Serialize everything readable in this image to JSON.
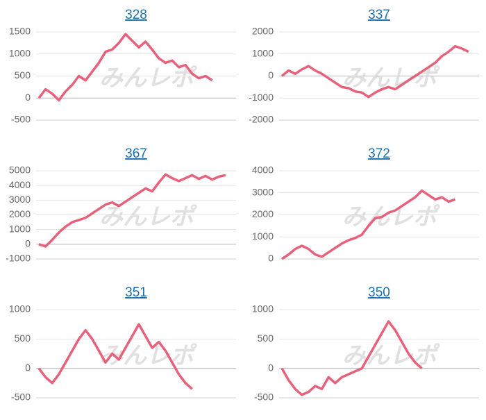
{
  "watermark": "みんレポ",
  "chart_data": [
    {
      "type": "line",
      "title": "328",
      "color": "#e8617a",
      "grid": true,
      "ylim": [
        -500,
        1500
      ],
      "yticks": [
        -500,
        0,
        500,
        1000,
        1500
      ],
      "values": [
        0,
        200,
        100,
        -50,
        150,
        300,
        500,
        400,
        600,
        800,
        1050,
        1100,
        1250,
        1450,
        1300,
        1150,
        1280,
        1100,
        900,
        800,
        850,
        700,
        750,
        550,
        450,
        500,
        400
      ]
    },
    {
      "type": "line",
      "title": "337",
      "color": "#e8617a",
      "grid": true,
      "ylim": [
        -2000,
        2000
      ],
      "yticks": [
        -2000,
        -1000,
        0,
        1000,
        2000
      ],
      "values": [
        0,
        250,
        100,
        300,
        450,
        250,
        100,
        -100,
        -300,
        -500,
        -550,
        -700,
        -750,
        -950,
        -750,
        -600,
        -500,
        -600,
        -400,
        -200,
        0,
        200,
        400,
        600,
        900,
        1100,
        1350,
        1250,
        1100
      ]
    },
    {
      "type": "line",
      "title": "367",
      "color": "#e8617a",
      "grid": true,
      "ylim": [
        -1000,
        5000
      ],
      "yticks": [
        -1000,
        0,
        1000,
        2000,
        3000,
        4000,
        5000
      ],
      "values": [
        0,
        -150,
        300,
        800,
        1200,
        1500,
        1650,
        1800,
        2100,
        2400,
        2700,
        2850,
        2600,
        2900,
        3200,
        3500,
        3800,
        3600,
        4200,
        4750,
        4500,
        4300,
        4500,
        4700,
        4450,
        4650,
        4400,
        4600,
        4700
      ]
    },
    {
      "type": "line",
      "title": "372",
      "color": "#e8617a",
      "grid": true,
      "ylim": [
        0,
        4000
      ],
      "yticks": [
        0,
        1000,
        2000,
        3000,
        4000
      ],
      "values": [
        0,
        200,
        450,
        600,
        450,
        200,
        100,
        300,
        500,
        700,
        850,
        950,
        1100,
        1500,
        1850,
        1900,
        2100,
        2200,
        2400,
        2600,
        2800,
        3100,
        2900,
        2700,
        2800,
        2600,
        2700
      ]
    },
    {
      "type": "line",
      "title": "351",
      "color": "#e8617a",
      "grid": true,
      "ylim": [
        -500,
        1000
      ],
      "yticks": [
        -500,
        0,
        500,
        1000
      ],
      "values": [
        0,
        -150,
        -250,
        -100,
        100,
        300,
        500,
        650,
        500,
        300,
        100,
        250,
        150,
        350,
        550,
        750,
        550,
        350,
        450,
        300,
        100,
        -100,
        -250,
        -350
      ]
    },
    {
      "type": "line",
      "title": "350",
      "color": "#e8617a",
      "grid": true,
      "ylim": [
        -500,
        1000
      ],
      "yticks": [
        -500,
        0,
        500,
        1000
      ],
      "values": [
        0,
        -200,
        -350,
        -450,
        -400,
        -300,
        -350,
        -150,
        -250,
        -150,
        -100,
        -50,
        0,
        200,
        400,
        600,
        800,
        650,
        450,
        250,
        100,
        0
      ]
    }
  ]
}
